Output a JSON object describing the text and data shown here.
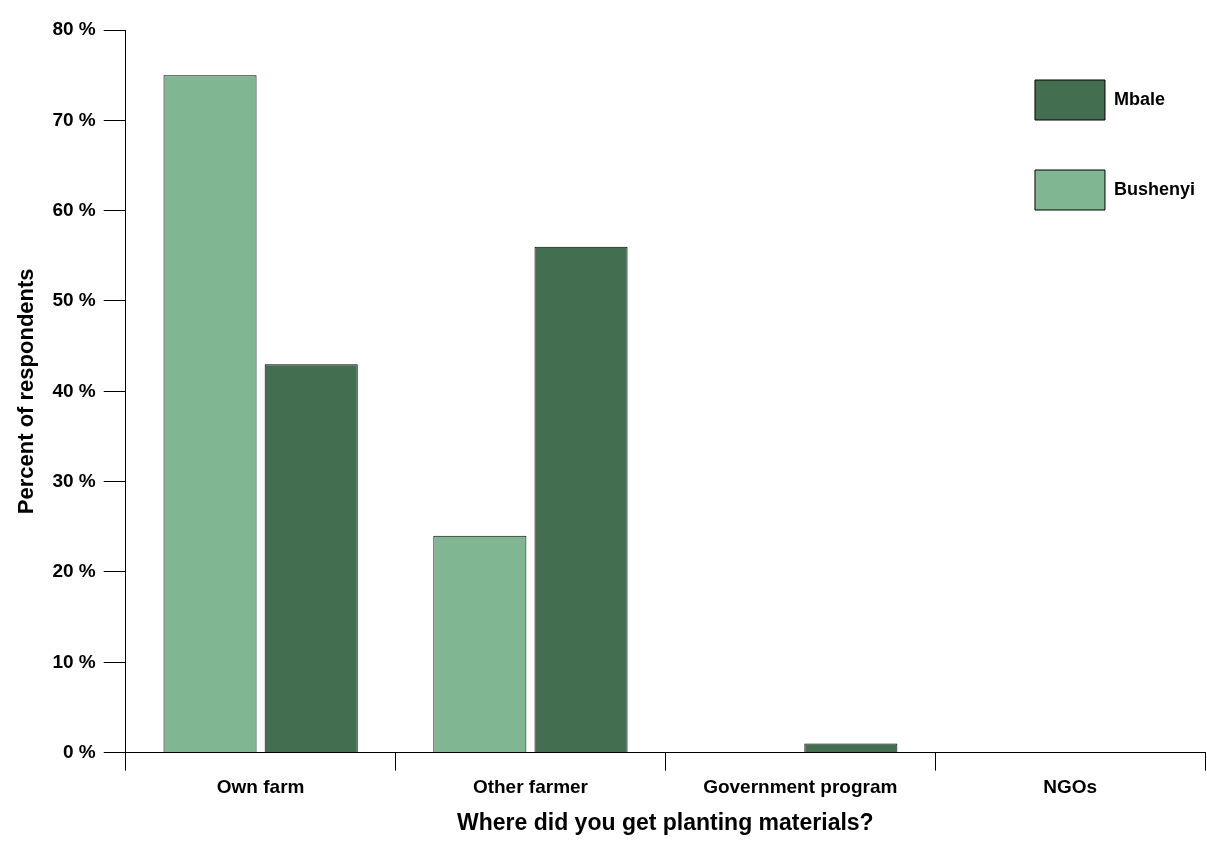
{
  "chart_data": {
    "type": "bar",
    "xlabel": "Where did you get planting materials?",
    "ylabel": "Percent of respondents",
    "categories": [
      "Own farm",
      "Other farmer",
      "Government program",
      "NGOs"
    ],
    "series": [
      {
        "name": "Bushenyi",
        "color": "#80b792",
        "values": [
          75,
          24,
          0,
          0
        ]
      },
      {
        "name": "Mbale",
        "color": "#436e50",
        "values": [
          43,
          56,
          1,
          0
        ]
      }
    ],
    "ylim": [
      0,
      80
    ],
    "yticks": [
      {
        "value": 0,
        "label": "0 %"
      },
      {
        "value": 10,
        "label": "10 %"
      },
      {
        "value": 20,
        "label": "20 %"
      },
      {
        "value": 30,
        "label": "30 %"
      },
      {
        "value": 40,
        "label": "40 %"
      },
      {
        "value": 50,
        "label": "50 %"
      },
      {
        "value": 60,
        "label": "60 %"
      },
      {
        "value": 70,
        "label": "70 %"
      },
      {
        "value": 80,
        "label": "80 %"
      }
    ],
    "grid": false,
    "legend": "top right"
  }
}
